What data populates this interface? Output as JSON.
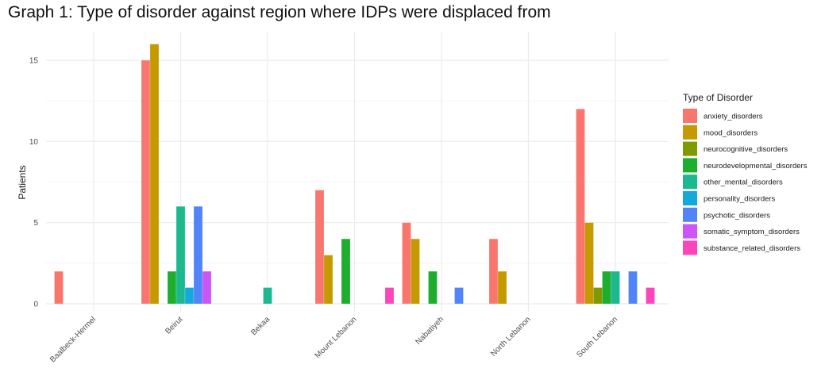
{
  "caption": "Graph 1: Type of disorder against region where IDPs were displaced from",
  "chart_data": {
    "type": "bar",
    "title": "",
    "xlabel": "",
    "ylabel": "Patients",
    "ylim": [
      0,
      16
    ],
    "yticks": [
      0,
      5,
      10,
      15
    ],
    "grid": true,
    "legend_title": "Type of Disorder",
    "legend_position": "right",
    "categories": [
      "Baalbeck-Hermel",
      "Beirut",
      "Bekaa",
      "Mount Lebanon",
      "Nabatiyeh",
      "North Lebanon",
      "South Lebanon"
    ],
    "series": [
      {
        "name": "anxiety_disorders",
        "color": "#F8766D",
        "values": [
          2,
          15,
          0,
          7,
          5,
          4,
          12
        ]
      },
      {
        "name": "mood_disorders",
        "color": "#C49A00",
        "values": [
          0,
          16,
          0,
          3,
          4,
          2,
          5
        ]
      },
      {
        "name": "neurocognitive_disorders",
        "color": "#7F9A00",
        "values": [
          0,
          0,
          0,
          0,
          0,
          0,
          1
        ]
      },
      {
        "name": "neurodevelopmental_disorders",
        "color": "#1DAE2E",
        "values": [
          0,
          2,
          0,
          4,
          2,
          0,
          2
        ]
      },
      {
        "name": "other_mental_disorders",
        "color": "#1CB88F",
        "values": [
          0,
          6,
          1,
          0,
          0,
          0,
          2
        ]
      },
      {
        "name": "personality_disorders",
        "color": "#14A9DD",
        "values": [
          0,
          1,
          0,
          0,
          0,
          0,
          0
        ]
      },
      {
        "name": "psychotic_disorders",
        "color": "#5184F8",
        "values": [
          0,
          6,
          0,
          0,
          1,
          0,
          2
        ]
      },
      {
        "name": "somatic_symptom_disorders",
        "color": "#CB55F5",
        "values": [
          0,
          2,
          0,
          0,
          0,
          0,
          0
        ]
      },
      {
        "name": "substance_related_disorders",
        "color": "#FB45BA",
        "values": [
          0,
          0,
          0,
          1,
          0,
          0,
          1
        ]
      }
    ]
  }
}
